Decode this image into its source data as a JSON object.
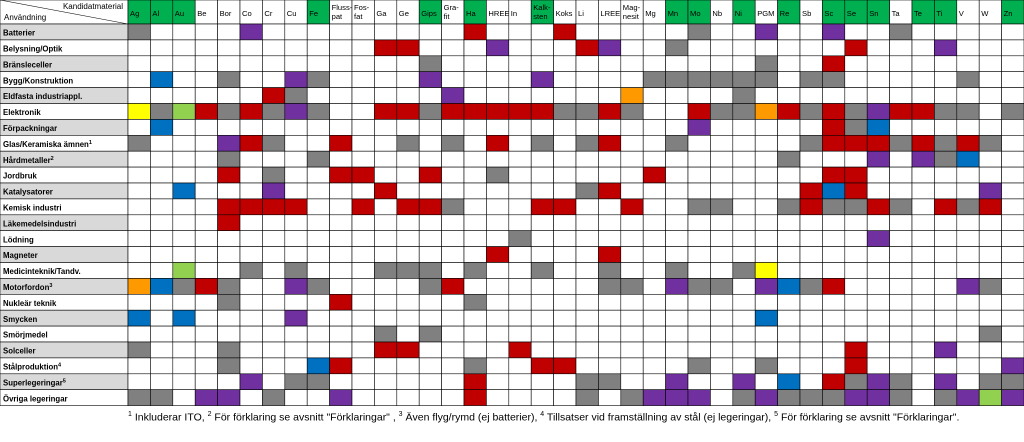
{
  "header": {
    "corner_top": "Kandidatmaterial",
    "corner_bottom": "Användning"
  },
  "colors": {
    "red": "#C00000",
    "gray": "#808080",
    "purple": "#7030A0",
    "blue": "#0070C0",
    "green": "#92D050",
    "orange": "#FF9900",
    "yellow": "#FFFF00",
    "header_green": "#00B050",
    "row_label_gray": "#D9D9D9",
    "empty": "#FFFFFF"
  },
  "columns": [
    {
      "label": "Ag",
      "highlight": true
    },
    {
      "label": "Al",
      "highlight": true
    },
    {
      "label": "Au",
      "highlight": true
    },
    {
      "label": "Be",
      "highlight": false
    },
    {
      "label": "Bor",
      "highlight": false
    },
    {
      "label": "Co",
      "highlight": false
    },
    {
      "label": "Cr",
      "highlight": false
    },
    {
      "label": "Cu",
      "highlight": false
    },
    {
      "label": "Fe",
      "highlight": true
    },
    {
      "label": "Fluss-\npat",
      "highlight": false
    },
    {
      "label": "Fos-\nfat",
      "highlight": false
    },
    {
      "label": "Ga",
      "highlight": false
    },
    {
      "label": "Ge",
      "highlight": false
    },
    {
      "label": "Gips",
      "highlight": true
    },
    {
      "label": "Gra-\nfit",
      "highlight": false
    },
    {
      "label": "Ha",
      "highlight": true
    },
    {
      "label": "HREE",
      "highlight": false
    },
    {
      "label": "In",
      "highlight": false
    },
    {
      "label": "Kalk-\nsten",
      "highlight": true
    },
    {
      "label": "Koks",
      "highlight": false
    },
    {
      "label": "Li",
      "highlight": false
    },
    {
      "label": "LREE",
      "highlight": false
    },
    {
      "label": "Mag-\nnesit",
      "highlight": false
    },
    {
      "label": "Mg",
      "highlight": false
    },
    {
      "label": "Mn",
      "highlight": true
    },
    {
      "label": "Mo",
      "highlight": true
    },
    {
      "label": "Nb",
      "highlight": false
    },
    {
      "label": "Ni",
      "highlight": true
    },
    {
      "label": "PGM",
      "highlight": false
    },
    {
      "label": "Re",
      "highlight": true
    },
    {
      "label": "Sb",
      "highlight": false
    },
    {
      "label": "Sc",
      "highlight": true
    },
    {
      "label": "Se",
      "highlight": true
    },
    {
      "label": "Sn",
      "highlight": true
    },
    {
      "label": "Ta",
      "highlight": false
    },
    {
      "label": "Te",
      "highlight": true
    },
    {
      "label": "Ti",
      "highlight": true
    },
    {
      "label": "V",
      "highlight": false
    },
    {
      "label": "W",
      "highlight": false
    },
    {
      "label": "Zn",
      "highlight": true
    }
  ],
  "rows": [
    {
      "label": "Batterier",
      "sup": "",
      "shaded": true,
      "cells": "g....p.........r...r.....g..p..p..g....."
    },
    {
      "label": "Belysning/Optik",
      "sup": "",
      "shaded": false,
      "cells": "...........rr...p...rp..g.......rl..p..."
    },
    {
      "label": "Bränsleceller",
      "sup": "",
      "shaded": true,
      "cells": ".............g..............g..r........"
    },
    {
      "label": "Bygg/Konstruktion",
      "sup": "",
      "shaded": false,
      "cells": ".b..g..pg....p....p....gggggg.gg.....g.."
    },
    {
      "label": "Eldfasta industriappl.",
      "sup": "",
      "shaded": true,
      "cells": "......rg......p.......o....g............"
    },
    {
      "label": "Elektronik",
      "sup": "",
      "shaded": false,
      "cells": "ygnrgrgpg..rrgrrrrrggrg..rggorgrgprrgg.g"
    },
    {
      "label": "Förpackningar",
      "sup": "",
      "shaded": true,
      "cells": ".b.......................p.....rgb......"
    },
    {
      "label": "Glas/Keramiska ämnen",
      "sup": "1",
      "shaded": false,
      "cells": "g...prg..r..g.g.r.g.gr..g.....grrrgrgrg."
    },
    {
      "label": "Hårdmetaller",
      "sup": "2",
      "shaded": true,
      "cells": "....g...g....................g...p.pgb.."
    },
    {
      "label": "Jordbruk",
      "sup": "",
      "shaded": false,
      "cells": "....r.g..rr..r..g......r.......rr......."
    },
    {
      "label": "Katalysatorer",
      "sup": "",
      "shaded": true,
      "cells": "..b...p....r........gr........rbr.....p."
    },
    {
      "label": "Kemisk industri",
      "sup": "",
      "shaded": false,
      "cells": "....rrrr..r.rrg...rr..r..gg..grggrg.rgr."
    },
    {
      "label": "Läkemedelsindustri",
      "sup": "",
      "shaded": true,
      "cells": "....r..................................."
    },
    {
      "label": "Lödning",
      "sup": "",
      "shaded": false,
      "cells": ".................g...............p......"
    },
    {
      "label": "Magneter",
      "sup": "",
      "shaded": true,
      "cells": "................r....r.................."
    },
    {
      "label": "Medicinteknik/Tandv.",
      "sup": "",
      "shaded": false,
      "cells": "..n..g.g...ggg.g..g..g..g..gy..........."
    },
    {
      "label": "Motorfordon",
      "sup": "3",
      "shaded": true,
      "cells": "obgrg..pg....gr......gg.pgg.pbgr.....pg."
    },
    {
      "label": "Nukleär teknik",
      "sup": "",
      "shaded": false,
      "cells": "....g....r.....g........................"
    },
    {
      "label": "Smycken",
      "sup": "",
      "shaded": true,
      "cells": "b.b....p....................b..........."
    },
    {
      "label": "Smörjmedel",
      "sup": "",
      "shaded": false,
      "cells": "...........g.g........................g."
    },
    {
      "label": "Solceller",
      "sup": "",
      "shaded": true,
      "cells": "g...g......rr....r..............r...p..."
    },
    {
      "label": "Stålproduktion",
      "sup": "4",
      "shaded": false,
      "cells": "....g...br.....g..rr.....g..g...r......p"
    },
    {
      "label": "Superlegeringar",
      "sup": "5",
      "shaded": true,
      "cells": ".....p.gg......r....gg..p..p.b.rgpg.p.gg"
    },
    {
      "label": "Övriga legeringar",
      "sup": "",
      "shaded": false,
      "cells": "gg.pp.g..p.....r....g.gppp.gpgggppg.gpnp"
    }
  ],
  "footnote": [
    {
      "sup": "1",
      "text": " Inkluderar ITO, "
    },
    {
      "sup": "2",
      "text": " För förklaring se avsnitt \"Förklaringar\" , "
    },
    {
      "sup": "3",
      "text": " Även flyg/rymd (ej batterier), "
    },
    {
      "sup": "4",
      "text": " Tillsatser vid framställning av stål (ej legeringar), "
    },
    {
      "sup": "5",
      "text": " För förklaring se avsnitt \"Förklaringar\"."
    }
  ]
}
